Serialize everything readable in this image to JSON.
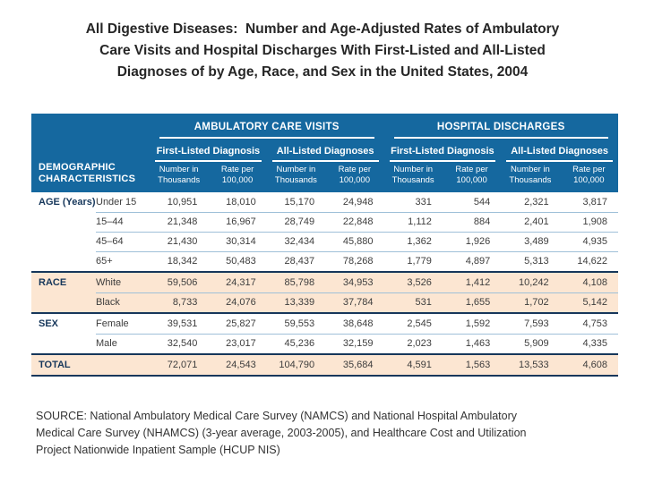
{
  "title": {
    "lines": [
      "All Digestive Diseases:  Number and Age-Adjusted Rates of Ambulatory",
      "Care Visits and Hospital Discharges With First-Listed and All-Listed",
      "Diagnoses of by Age, Race, and Sex in the United States, 2004"
    ]
  },
  "table": {
    "corner": {
      "line1": "DEMOGRAPHIC",
      "line2": "CHARACTERISTICS"
    },
    "top_groups": [
      {
        "label": "AMBULATORY CARE VISITS"
      },
      {
        "label": "HOSPITAL DISCHARGES"
      }
    ],
    "sub_groups": [
      {
        "label": "First-Listed Diagnosis"
      },
      {
        "label": "All-Listed Diagnoses"
      },
      {
        "label": "First-Listed Diagnosis"
      },
      {
        "label": "All-Listed Diagnoses"
      }
    ],
    "col_headers": [
      {
        "line1": "Number in",
        "line2": "Thousands"
      },
      {
        "line1": "Rate per",
        "line2": "100,000"
      },
      {
        "line1": "Number in",
        "line2": "Thousands"
      },
      {
        "line1": "Rate per",
        "line2": "100,000"
      },
      {
        "line1": "Number in",
        "line2": "Thousands"
      },
      {
        "line1": "Rate per",
        "line2": "100,000"
      },
      {
        "line1": "Number in",
        "line2": "Thousands"
      },
      {
        "line1": "Rate per",
        "line2": "100,000"
      }
    ],
    "groups": [
      {
        "label": "AGE (Years)",
        "rows": [
          {
            "label": "Under 15",
            "values": [
              "10,951",
              "18,010",
              "15,170",
              "24,948",
              "331",
              "544",
              "2,321",
              "3,817"
            ]
          },
          {
            "label": "15–44",
            "values": [
              "21,348",
              "16,967",
              "28,749",
              "22,848",
              "1,112",
              "884",
              "2,401",
              "1,908"
            ]
          },
          {
            "label": "45–64",
            "values": [
              "21,430",
              "30,314",
              "32,434",
              "45,880",
              "1,362",
              "1,926",
              "3,489",
              "4,935"
            ]
          },
          {
            "label": "65+",
            "values": [
              "18,342",
              "50,483",
              "28,437",
              "78,268",
              "1,779",
              "4,897",
              "5,313",
              "14,622"
            ]
          }
        ]
      },
      {
        "label": "RACE",
        "rows": [
          {
            "label": "White",
            "values": [
              "59,506",
              "24,317",
              "85,798",
              "34,953",
              "3,526",
              "1,412",
              "10,242",
              "4,108"
            ]
          },
          {
            "label": "Black",
            "values": [
              "8,733",
              "24,076",
              "13,339",
              "37,784",
              "531",
              "1,655",
              "1,702",
              "5,142"
            ]
          }
        ]
      },
      {
        "label": "SEX",
        "rows": [
          {
            "label": "Female",
            "values": [
              "39,531",
              "25,827",
              "59,553",
              "38,648",
              "2,545",
              "1,592",
              "7,593",
              "4,753"
            ]
          },
          {
            "label": "Male",
            "values": [
              "32,540",
              "23,017",
              "45,236",
              "32,159",
              "2,023",
              "1,463",
              "5,909",
              "4,335"
            ]
          }
        ]
      },
      {
        "label": "TOTAL",
        "rows": [
          {
            "label": "",
            "values": [
              "72,071",
              "24,543",
              "104,790",
              "35,684",
              "4,591",
              "1,563",
              "13,533",
              "4,608"
            ]
          }
        ]
      }
    ]
  },
  "source": {
    "lines": [
      "SOURCE: National Ambulatory Medical Care Survey (NAMCS) and National Hospital Ambulatory",
      "Medical Care Survey (NHAMCS) (3-year average, 2003-2005), and Healthcare Cost and Utilization",
      "Project Nationwide Inpatient Sample (HCUP NIS)"
    ]
  },
  "colors": {
    "header_blue": "#15689F",
    "navy": "#16375B",
    "peach": "#FCE6D2",
    "row_line": "#9FC0D8",
    "value_text": "#3D3D3D",
    "title_text": "#262626",
    "source_text": "#333333"
  }
}
